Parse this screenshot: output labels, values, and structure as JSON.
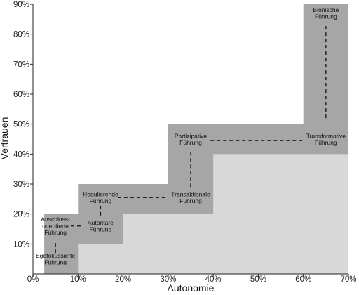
{
  "chart_data": {
    "type": "area",
    "xlabel": "Autonomie",
    "ylabel": "Vertrauen",
    "xlim": [
      0,
      70
    ],
    "ylim": [
      0,
      90
    ],
    "x_ticks": [
      "0%",
      "10%",
      "20%",
      "30%",
      "40%",
      "50%",
      "60%",
      "70%"
    ],
    "y_ticks": [
      "10%",
      "20%",
      "30%",
      "40%",
      "50%",
      "60%",
      "70%",
      "80%",
      "90%"
    ],
    "light_region_steps": [
      {
        "x_from": 10,
        "x_to": 20,
        "y": 10
      },
      {
        "x_from": 20,
        "x_to": 40,
        "y": 20
      },
      {
        "x_from": 40,
        "x_to": 70,
        "y": 40
      }
    ],
    "dark_region_steps": [
      {
        "x_from": 2.5,
        "x_to": 10,
        "y": 20
      },
      {
        "x_from": 10,
        "x_to": 30,
        "y": 30
      },
      {
        "x_from": 30,
        "x_to": 60,
        "y": 50
      },
      {
        "x_from": 60,
        "x_to": 70,
        "y": 90
      }
    ],
    "styles": [
      {
        "label": "Egofokussierte Führung",
        "lines": [
          "Egofokussierte",
          "Führung"
        ],
        "x": 5,
        "y": 5
      },
      {
        "label": "Anschluss-orientierte Führung",
        "lines": [
          "Anschluss-",
          "orientierte",
          "Führung"
        ],
        "x": 5,
        "y": 16
      },
      {
        "label": "Autoritäre Führung",
        "lines": [
          "Autoritäre",
          "Führung"
        ],
        "x": 15,
        "y": 16
      },
      {
        "label": "Regulierende Führung",
        "lines": [
          "Regulierende",
          "Führung"
        ],
        "x": 15,
        "y": 25.5
      },
      {
        "label": "Transaktionale Führung",
        "lines": [
          "Transaktionale",
          "Führung"
        ],
        "x": 35,
        "y": 25.5
      },
      {
        "label": "Partizipative Führung",
        "lines": [
          "Partizipative",
          "Führung"
        ],
        "x": 35,
        "y": 45
      },
      {
        "label": "Transformative Führung",
        "lines": [
          "Transformative",
          "Führung"
        ],
        "x": 65,
        "y": 45
      },
      {
        "label": "Bionische Führung",
        "lines": [
          "Bionische",
          "Führung"
        ],
        "x": 65,
        "y": 87
      }
    ],
    "connections": [
      {
        "from": [
          5,
          7
        ],
        "to": [
          5,
          10.5
        ]
      },
      {
        "from": [
          8.4,
          16
        ],
        "to": [
          11.2,
          16
        ]
      },
      {
        "from": [
          15,
          19.5
        ],
        "to": [
          15,
          22.5
        ]
      },
      {
        "from": [
          18.8,
          25.5
        ],
        "to": [
          30,
          25.5
        ]
      },
      {
        "from": [
          35,
          29
        ],
        "to": [
          35,
          41.5
        ]
      },
      {
        "from": [
          39.4,
          44.5
        ],
        "to": [
          60,
          44.5
        ]
      },
      {
        "from": [
          65,
          52
        ],
        "to": [
          65,
          83.5
        ]
      }
    ],
    "colors": {
      "light_region": "#d8d8d8",
      "dark_region": "#a6a6a6",
      "connector": "#111111",
      "axis": "#222222"
    }
  }
}
